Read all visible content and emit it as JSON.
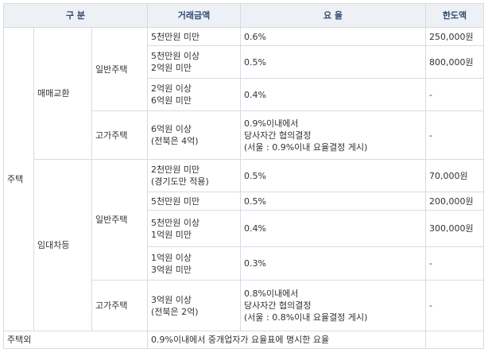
{
  "headers": {
    "category": "구 분",
    "amount": "거래금액",
    "rate": "요 율",
    "limit": "한도액"
  },
  "house": {
    "label": "주택",
    "sale": {
      "label": "매매교환",
      "general": {
        "label": "일반주택",
        "rows": [
          {
            "amount": [
              "5천만원 미만"
            ],
            "rate": [
              "0.6%"
            ],
            "limit": "250,000원"
          },
          {
            "amount": [
              "5천만원 이상",
              "2억원 미만"
            ],
            "rate": [
              "0.5%"
            ],
            "limit": "800,000원"
          },
          {
            "amount": [
              "2억원 이상",
              "6억원 미만"
            ],
            "rate": [
              "0.4%"
            ],
            "limit": "-"
          }
        ]
      },
      "luxury": {
        "label": "고가주택",
        "amount": [
          "6억원 이상",
          "(전북은 4억)"
        ],
        "rate": [
          "0.9%이내에서",
          "당사자간 협의결정",
          "(서울 : 0.9%이내 요율결정 게시)"
        ],
        "limit": "-"
      }
    },
    "lease": {
      "label": "임대차등",
      "general": {
        "label": "일반주택",
        "rows": [
          {
            "amount": [
              "2천만원 미만",
              "(경기도만 적용)"
            ],
            "rate": [
              "0.5%"
            ],
            "limit": "70,000원"
          },
          {
            "amount": [
              "5천만원 미만"
            ],
            "rate": [
              "0.5%"
            ],
            "limit": "200,000원"
          },
          {
            "amount": [
              "5천만원 이상",
              "1억원 미만"
            ],
            "rate": [
              "0.4%"
            ],
            "limit": "300,000원"
          },
          {
            "amount": [
              "1억원 이상",
              "3억원 미만"
            ],
            "rate": [
              "0.3%"
            ],
            "limit": "-"
          }
        ]
      },
      "luxury": {
        "label": "고가주택",
        "amount": [
          "3억원 이상",
          "(전북은 2억)"
        ],
        "rate": [
          "0.8%이내에서",
          "당사자간 협의결정",
          "(서울 : 0.8%이내 요율결정 게시)"
        ],
        "limit": "-"
      }
    }
  },
  "other": {
    "label": "주택외",
    "text": "0.9%이내에서 중개업자가 요율표에 명시한 요율"
  }
}
